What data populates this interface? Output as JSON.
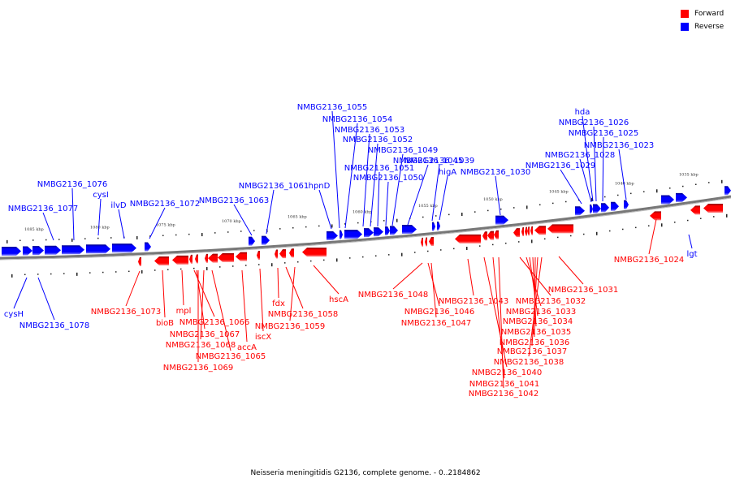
{
  "legend": {
    "items": [
      {
        "label": "Forward",
        "color": "#ff0000"
      },
      {
        "label": "Reverse",
        "color": "#0000ff"
      }
    ]
  },
  "footer": "Neisseria meningitidis G2136, complete genome. - 0..2184862",
  "colors": {
    "forward": "#ff0000",
    "reverse": "#0000ff",
    "backbone": "#777777"
  },
  "scale_labels": [
    "1085 kbp",
    "1080 kbp",
    "1075 kbp",
    "1070 kbp",
    "1065 kbp",
    "1060 kbp",
    "1055 kbp",
    "1050 kbp",
    "1045 kbp",
    "1040 kbp",
    "1035 kbp"
  ],
  "reverse_genes_above": [
    "NMBG2136_1077",
    "NMBG2136_1076",
    "cysI",
    "ilvD",
    "NMBG2136_1072",
    "NMBG2136_1063",
    "NMBG2136_1061",
    "hpnD",
    "NMBG2136_1055",
    "NMBG2136_1054",
    "NMBG2136_1053",
    "NMBG2136_1052",
    "NMBG2136_1051",
    "NMBG2136_1050",
    "NMBG2136_1049",
    "NMBG2136_1045",
    "higA",
    "NMBG2136_1039",
    "NMBG2136_1030",
    "NMBG2136_1029",
    "NMBG2136_1028",
    "hda",
    "NMBG2136_1026",
    "NMBG2136_1025",
    "NMBG2136_1023"
  ],
  "reverse_genes_below": [
    "cysH",
    "NMBG2136_1078",
    "lgt"
  ],
  "forward_genes": [
    "NMBG2136_1073",
    "bioB",
    "mpl",
    "NMBG2136_1066",
    "NMBG2136_1067",
    "NMBG2136_1068",
    "NMBG2136_1069",
    "NMBG2136_1065",
    "accA",
    "iscX",
    "fdx",
    "NMBG2136_1058",
    "NMBG2136_1059",
    "hscA",
    "NMBG2136_1048",
    "NMBG2136_1046",
    "NMBG2136_1047",
    "NMBG2136_1043",
    "NMBG2136_1032",
    "NMBG2136_1033",
    "NMBG2136_1034",
    "NMBG2136_1035",
    "NMBG2136_1036",
    "NMBG2136_1037",
    "NMBG2136_1038",
    "NMBG2136_1040",
    "NMBG2136_1041",
    "NMBG2136_1042",
    "NMBG2136_1031",
    "NMBG2136_1024"
  ]
}
